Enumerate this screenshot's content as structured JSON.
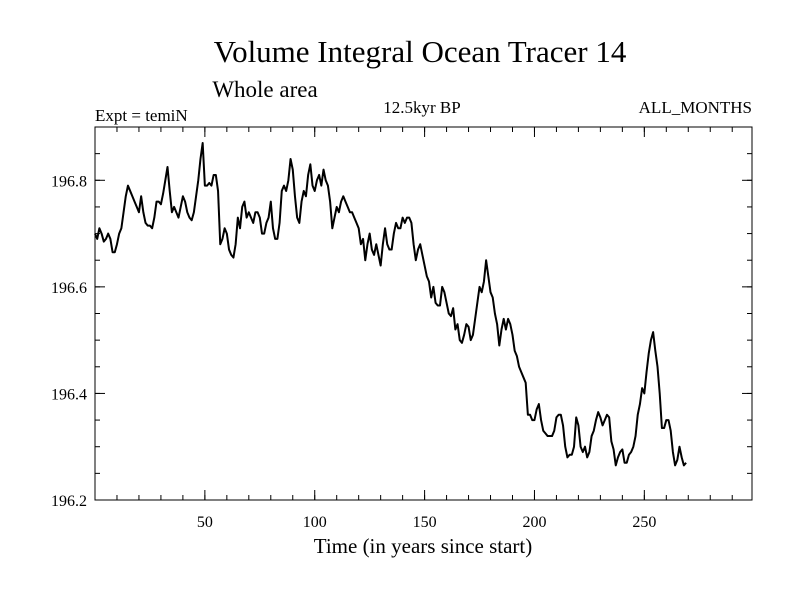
{
  "chart_data": {
    "type": "line",
    "title": "Volume Integral Ocean Tracer 14",
    "subtitle": "Whole area",
    "header_left": "Expt = temiN",
    "header_center": "12.5kyr BP",
    "header_right": "ALL_MONTHS",
    "xlabel": "Time (in years since start)",
    "ylabel": "",
    "xlim": [
      0,
      299
    ],
    "ylim": [
      196.2,
      196.9
    ],
    "x_ticks": [
      50,
      100,
      150,
      200,
      250
    ],
    "x_tick_labels": [
      "50",
      "100",
      "150",
      "200",
      "250"
    ],
    "x_minor_step": 10,
    "y_ticks": [
      196.2,
      196.4,
      196.6,
      196.8
    ],
    "y_tick_labels": [
      "196.2",
      "196.4",
      "196.6",
      "196.8"
    ],
    "y_minor_step": 0.05,
    "grid": false,
    "series": [
      {
        "name": "Volume Integral Ocean Tracer 14",
        "color": "#000000",
        "x_start": 0,
        "x_step": 1,
        "values": [
          196.7,
          196.69,
          196.71,
          196.7,
          196.685,
          196.69,
          196.7,
          196.69,
          196.665,
          196.665,
          196.68,
          196.7,
          196.71,
          196.74,
          196.77,
          196.79,
          196.78,
          196.77,
          196.76,
          196.75,
          196.74,
          196.77,
          196.74,
          196.72,
          196.715,
          196.715,
          196.71,
          196.73,
          196.76,
          196.76,
          196.755,
          196.775,
          196.8,
          196.825,
          196.78,
          196.74,
          196.75,
          196.74,
          196.73,
          196.75,
          196.77,
          196.76,
          196.74,
          196.73,
          196.725,
          196.74,
          196.77,
          196.8,
          196.84,
          196.87,
          196.79,
          196.79,
          196.795,
          196.79,
          196.81,
          196.81,
          196.78,
          196.68,
          196.69,
          196.71,
          196.7,
          196.67,
          196.66,
          196.655,
          196.68,
          196.73,
          196.71,
          196.75,
          196.76,
          196.73,
          196.74,
          196.73,
          196.72,
          196.74,
          196.74,
          196.73,
          196.7,
          196.7,
          196.72,
          196.73,
          196.76,
          196.71,
          196.69,
          196.69,
          196.72,
          196.78,
          196.79,
          196.78,
          196.8,
          196.84,
          196.82,
          196.77,
          196.73,
          196.72,
          196.76,
          196.78,
          196.77,
          196.81,
          196.83,
          196.79,
          196.78,
          196.8,
          196.81,
          196.79,
          196.82,
          196.8,
          196.79,
          196.76,
          196.71,
          196.73,
          196.75,
          196.74,
          196.76,
          196.77,
          196.76,
          196.75,
          196.74,
          196.74,
          196.73,
          196.72,
          196.71,
          196.68,
          196.69,
          196.65,
          196.68,
          196.7,
          196.67,
          196.66,
          196.68,
          196.66,
          196.64,
          196.68,
          196.71,
          196.68,
          196.67,
          196.67,
          196.7,
          196.72,
          196.71,
          196.71,
          196.73,
          196.72,
          196.73,
          196.73,
          196.72,
          196.68,
          196.65,
          196.67,
          196.68,
          196.66,
          196.64,
          196.62,
          196.61,
          196.58,
          196.6,
          196.57,
          196.565,
          196.565,
          196.6,
          196.59,
          196.57,
          196.55,
          196.545,
          196.56,
          196.52,
          196.53,
          196.5,
          196.495,
          196.51,
          196.53,
          196.525,
          196.5,
          196.51,
          196.54,
          196.57,
          196.6,
          196.59,
          196.61,
          196.65,
          196.62,
          196.59,
          196.58,
          196.55,
          196.53,
          196.49,
          196.52,
          196.54,
          196.52,
          196.54,
          196.53,
          196.51,
          196.48,
          196.47,
          196.45,
          196.44,
          196.43,
          196.42,
          196.36,
          196.36,
          196.35,
          196.35,
          196.37,
          196.38,
          196.35,
          196.33,
          196.325,
          196.32,
          196.32,
          196.32,
          196.33,
          196.355,
          196.36,
          196.36,
          196.34,
          196.3,
          196.28,
          196.285,
          196.285,
          196.3,
          196.355,
          196.34,
          196.3,
          196.29,
          196.3,
          196.28,
          196.29,
          196.32,
          196.33,
          196.35,
          196.365,
          196.355,
          196.34,
          196.35,
          196.36,
          196.355,
          196.31,
          196.295,
          196.265,
          196.28,
          196.29,
          196.295,
          196.27,
          196.27,
          196.285,
          196.29,
          196.3,
          196.32,
          196.36,
          196.38,
          196.41,
          196.4,
          196.44,
          196.475,
          196.5,
          196.515,
          196.48,
          196.45,
          196.4,
          196.335,
          196.335,
          196.35,
          196.35,
          196.33,
          196.29,
          196.265,
          196.275,
          196.3,
          196.28,
          196.265,
          196.27
        ]
      }
    ]
  }
}
